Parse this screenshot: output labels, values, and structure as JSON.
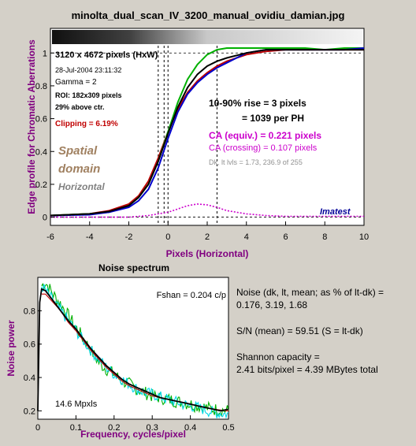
{
  "title": "minolta_dual_scan_IV_3200_manual_ovidiu_damian.jpg",
  "colors": {
    "background": "#d4d0c8",
    "red": "#c00000",
    "green": "#00b000",
    "blue": "#0000cc",
    "black": "#000000",
    "cyan": "#00d8e8",
    "magenta": "#cc00cc",
    "spatial_label": "#a08060",
    "horizontal_label": "#808080"
  },
  "edge_plot": {
    "info": {
      "size": "3120 x 4672 pixels (HxW)",
      "date": "28-Jul-2004 23:11:32",
      "gamma": "Gamma = 2",
      "roi": "ROI: 182x309 pixels",
      "above": "29% above ctr.",
      "clipping": "Clipping = 6.19%"
    },
    "labels": {
      "spatial": "Spatial",
      "domain": "domain",
      "horizontal": "Horizontal",
      "rise1": "10-90% rise = 3 pixels",
      "rise2": "= 1039 per PH",
      "ca_equiv": "CA (equiv.) = 0.221 pixels",
      "ca_crossing": "CA (crossing) = 0.107 pixels",
      "dklt": "Dk, lt lvls = 1.73, 236.9 of 255",
      "imatest": "Imatest"
    }
  },
  "noise_panel": {
    "title": "Noise spectrum",
    "fshan": "Fshan = 0.204 c/p",
    "mpxls": "14.6 Mpxls",
    "text": {
      "noise1": "Noise (dk, lt, mean; as % of lt-dk) =",
      "noise2": "0.176,  3.19,  1.68",
      "sn": "S/N (mean) = 59.51  (S = lt-dk)",
      "shannon1": "Shannon capacity =",
      "shannon2": "2.41 bits/pixel = 4.39 MBytes total"
    }
  },
  "chart_data": [
    {
      "type": "line",
      "title": "minolta_dual_scan_IV_3200_manual_ovidiu_damian.jpg",
      "xlabel": "Pixels (Horizontal)",
      "ylabel": "Edge profile for Chromatic Aberrations",
      "xlim": [
        -6,
        10
      ],
      "ylim": [
        -0.05,
        1.15
      ],
      "xticks": [
        -6,
        -4,
        -2,
        0,
        2,
        4,
        6,
        8,
        10
      ],
      "yticks": [
        0,
        0.2,
        0.4,
        0.6,
        0.8,
        1
      ],
      "grid": false,
      "vlines_dashed": [
        -0.5,
        -0.2,
        0.0,
        2.5
      ],
      "series": [
        {
          "color": "red",
          "x": [
            -6,
            -4,
            -3,
            -2,
            -1.5,
            -1,
            -0.5,
            0,
            0.5,
            1,
            1.5,
            2,
            2.5,
            3,
            4,
            5,
            6,
            7,
            8,
            9,
            10
          ],
          "y": [
            0.01,
            0.02,
            0.04,
            0.08,
            0.13,
            0.22,
            0.36,
            0.52,
            0.66,
            0.76,
            0.83,
            0.88,
            0.92,
            0.95,
            0.99,
            1.01,
            1.02,
            1.02,
            1.02,
            1.02,
            1.02
          ]
        },
        {
          "color": "green",
          "x": [
            -6,
            -4,
            -3,
            -2,
            -1.5,
            -1,
            -0.5,
            0,
            0.5,
            1,
            1.5,
            2,
            2.5,
            3,
            4,
            5,
            6,
            7,
            8,
            9,
            10
          ],
          "y": [
            0.01,
            0.02,
            0.03,
            0.07,
            0.12,
            0.2,
            0.34,
            0.52,
            0.7,
            0.84,
            0.93,
            0.99,
            1.02,
            1.03,
            1.03,
            1.03,
            1.03,
            1.03,
            1.02,
            1.03,
            1.03
          ]
        },
        {
          "color": "blue",
          "x": [
            -6,
            -4,
            -3,
            -2,
            -1.5,
            -1,
            -0.5,
            0,
            0.5,
            1,
            1.5,
            2,
            2.5,
            3,
            3.5,
            4,
            5,
            6,
            7,
            8,
            9,
            10
          ],
          "y": [
            0.01,
            0.015,
            0.03,
            0.06,
            0.1,
            0.17,
            0.3,
            0.48,
            0.64,
            0.75,
            0.82,
            0.87,
            0.91,
            0.94,
            0.97,
            1.0,
            1.02,
            1.02,
            1.02,
            1.02,
            1.02,
            1.03
          ]
        },
        {
          "color": "black",
          "x": [
            -6,
            -4,
            -3,
            -2,
            -1.5,
            -1,
            -0.5,
            0,
            0.5,
            1,
            1.5,
            2,
            2.5,
            3,
            4,
            5,
            6,
            7,
            8,
            9,
            10
          ],
          "y": [
            0.01,
            0.02,
            0.035,
            0.07,
            0.12,
            0.2,
            0.34,
            0.51,
            0.67,
            0.79,
            0.87,
            0.92,
            0.95,
            0.97,
            1.0,
            1.02,
            1.02,
            1.02,
            1.02,
            1.02,
            1.02
          ]
        },
        {
          "color": "magenta",
          "dashed": true,
          "x": [
            -6,
            -2,
            -1,
            0,
            0.5,
            1,
            1.5,
            2,
            2.5,
            3,
            4,
            5,
            6,
            7,
            8,
            9,
            10
          ],
          "y": [
            0.0,
            0.0,
            0.01,
            0.03,
            0.05,
            0.07,
            0.08,
            0.075,
            0.06,
            0.04,
            0.02,
            0.01,
            0.005,
            0.005,
            0.005,
            0.005,
            0.005
          ]
        }
      ]
    },
    {
      "type": "line",
      "title": "Noise spectrum",
      "xlabel": "Frequency, cycles/pixel",
      "ylabel": "Noise power",
      "xlim": [
        0,
        0.5
      ],
      "ylim": [
        0.15,
        1.0
      ],
      "xticks": [
        0,
        0.1,
        0.2,
        0.3,
        0.4,
        0.5
      ],
      "yticks": [
        0.2,
        0.4,
        0.6,
        0.8
      ],
      "series": [
        {
          "color": "black",
          "x": [
            0,
            0.005,
            0.01,
            0.02,
            0.04,
            0.06,
            0.08,
            0.1,
            0.12,
            0.14,
            0.16,
            0.18,
            0.2,
            0.22,
            0.24,
            0.26,
            0.28,
            0.3,
            0.32,
            0.34,
            0.36,
            0.38,
            0.4,
            0.42,
            0.44,
            0.46,
            0.48,
            0.5
          ],
          "y": [
            0.2,
            0.85,
            0.93,
            0.92,
            0.86,
            0.8,
            0.74,
            0.69,
            0.63,
            0.57,
            0.52,
            0.47,
            0.43,
            0.39,
            0.36,
            0.34,
            0.32,
            0.3,
            0.28,
            0.27,
            0.26,
            0.25,
            0.24,
            0.23,
            0.22,
            0.21,
            0.2,
            0.21
          ]
        },
        {
          "color": "red",
          "x": [
            0.01,
            0.02,
            0.04,
            0.06,
            0.08,
            0.1,
            0.12,
            0.14,
            0.16,
            0.18,
            0.2,
            0.22,
            0.24,
            0.26,
            0.28,
            0.3,
            0.34,
            0.38,
            0.42,
            0.46,
            0.5
          ],
          "y": [
            0.9,
            0.9,
            0.85,
            0.8,
            0.73,
            0.68,
            0.62,
            0.56,
            0.51,
            0.46,
            0.42,
            0.38,
            0.35,
            0.33,
            0.31,
            0.29,
            0.27,
            0.25,
            0.23,
            0.21,
            0.2
          ]
        },
        {
          "color": "green",
          "noisy": true,
          "amp": 0.04,
          "x": [
            0.01,
            0.02,
            0.04,
            0.06,
            0.08,
            0.1,
            0.12,
            0.14,
            0.16,
            0.18,
            0.2,
            0.22,
            0.24,
            0.26,
            0.28,
            0.3,
            0.34,
            0.38,
            0.42,
            0.46,
            0.5
          ],
          "y": [
            0.95,
            0.97,
            0.9,
            0.84,
            0.77,
            0.7,
            0.63,
            0.56,
            0.49,
            0.45,
            0.42,
            0.38,
            0.36,
            0.33,
            0.31,
            0.29,
            0.27,
            0.25,
            0.23,
            0.21,
            0.2
          ]
        },
        {
          "color": "cyan",
          "noisy": true,
          "amp": 0.035,
          "x": [
            0.01,
            0.02,
            0.04,
            0.06,
            0.08,
            0.1,
            0.12,
            0.14,
            0.16,
            0.18,
            0.2,
            0.22,
            0.24,
            0.26,
            0.28,
            0.3,
            0.34,
            0.38,
            0.42,
            0.46,
            0.5
          ],
          "y": [
            0.95,
            0.92,
            0.86,
            0.8,
            0.74,
            0.68,
            0.62,
            0.56,
            0.51,
            0.46,
            0.42,
            0.39,
            0.36,
            0.33,
            0.31,
            0.3,
            0.27,
            0.24,
            0.22,
            0.19,
            0.18
          ]
        }
      ]
    }
  ]
}
